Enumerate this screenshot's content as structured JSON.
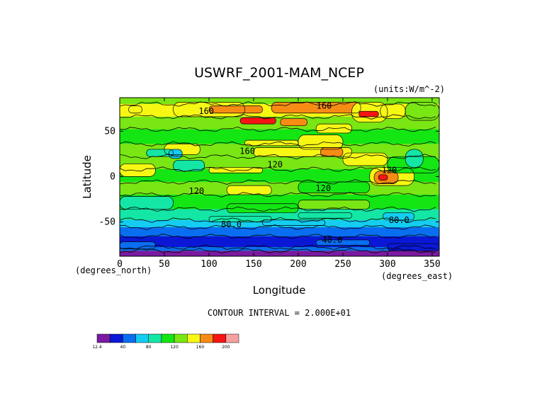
{
  "chart_data": {
    "type": "heatmap",
    "title": "USWRF_2001-MAM_NCEP",
    "units_label": "(units:W/m^-2)",
    "xlabel": "Longitude",
    "ylabel": "Latitude",
    "x_unit_label": "(degrees_east)",
    "y_unit_label": "(degrees_north)",
    "xlim": [
      0,
      360
    ],
    "ylim": [
      -90,
      90
    ],
    "x_ticks": [
      0,
      50,
      100,
      150,
      200,
      250,
      300,
      350
    ],
    "y_ticks": [
      50,
      0,
      -50
    ],
    "contour_interval_text": "CONTOUR INTERVAL = 2.000E+01",
    "contour_labels": [
      {
        "text": "160",
        "lon": 97,
        "lat": 72
      },
      {
        "text": "160",
        "lon": 229,
        "lat": 78
      },
      {
        "text": "160",
        "lon": 143,
        "lat": 28
      },
      {
        "text": "120",
        "lon": 174,
        "lat": 13
      },
      {
        "text": "120",
        "lon": 302,
        "lat": 7
      },
      {
        "text": "120",
        "lon": 86,
        "lat": -16
      },
      {
        "text": "120",
        "lon": 228,
        "lat": -13
      },
      {
        "text": "80.0",
        "lon": 125,
        "lat": -53
      },
      {
        "text": "80.0",
        "lon": 313,
        "lat": -48
      },
      {
        "text": "40.0",
        "lon": 238,
        "lat": -70
      }
    ],
    "colorbar": {
      "colors": [
        "#7a1aa0",
        "#0a18d6",
        "#0a6ef0",
        "#14cdf0",
        "#14e6a6",
        "#14e614",
        "#7ae614",
        "#f7f714",
        "#f78c14",
        "#f71414",
        "#f7a0a0"
      ],
      "tick_labels": [
        "12.4",
        "40",
        "80",
        "120",
        "160",
        "200"
      ]
    }
  }
}
